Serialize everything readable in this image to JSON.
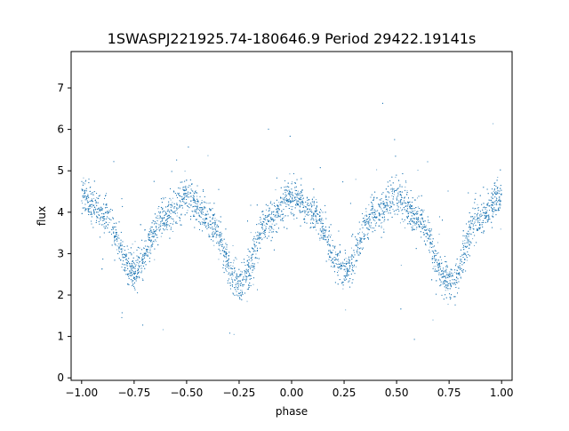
{
  "chart_data": {
    "type": "scatter",
    "title": "1SWASPJ221925.74-180646.9 Period 29422.19141s",
    "xlabel": "phase",
    "ylabel": "flux",
    "xlim": [
      -1.05,
      1.05
    ],
    "ylim": [
      -0.06,
      7.88
    ],
    "x_ticks": [
      -1.0,
      -0.75,
      -0.5,
      -0.25,
      0.0,
      0.25,
      0.5,
      0.75,
      1.0
    ],
    "x_tick_labels": [
      "−1.00",
      "−0.75",
      "−0.50",
      "−0.25",
      "0.00",
      "0.25",
      "0.50",
      "0.75",
      "1.00"
    ],
    "y_ticks": [
      0,
      1,
      2,
      3,
      4,
      5,
      6,
      7
    ],
    "y_tick_labels": [
      "0",
      "1",
      "2",
      "3",
      "4",
      "5",
      "6",
      "7"
    ],
    "grid": false,
    "point_color": "#1f77b4",
    "period_seconds": 29422.19141,
    "light_curve_profile": {
      "x": [
        -1.0,
        -0.9,
        -0.75,
        -0.6,
        -0.5,
        -0.4,
        -0.25,
        -0.1,
        0.0,
        0.1,
        0.25,
        0.4,
        0.5,
        0.6,
        0.75,
        0.9,
        1.0
      ],
      "y": [
        4.4,
        3.95,
        2.6,
        3.95,
        4.4,
        3.85,
        2.3,
        3.85,
        4.4,
        3.95,
        2.6,
        3.95,
        4.4,
        3.85,
        2.3,
        3.85,
        4.4
      ]
    },
    "scatter_spread": 0.22,
    "n_points_rendered": 9000
  }
}
